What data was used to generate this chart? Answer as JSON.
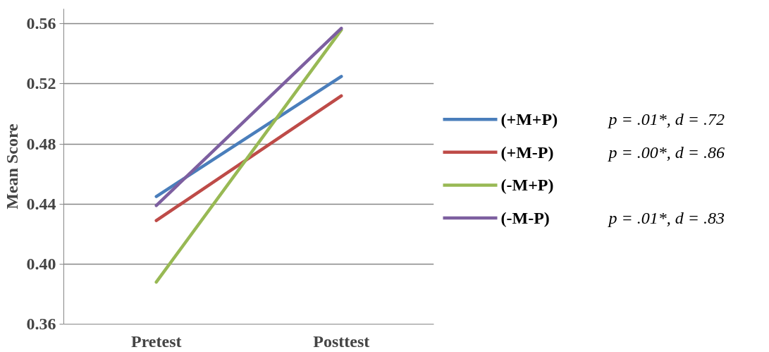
{
  "chart_data": {
    "type": "line",
    "ylabel": "Mean Score",
    "categories": [
      "Pretest",
      "Posttest"
    ],
    "series": [
      {
        "name": "(+M+P)",
        "color": "#4a7ebb",
        "values": [
          0.445,
          0.525
        ]
      },
      {
        "name": "(+M-P)",
        "color": "#be4b48",
        "values": [
          0.429,
          0.512
        ]
      },
      {
        "name": "(-M+P)",
        "color": "#98b954",
        "values": [
          0.388,
          0.556
        ]
      },
      {
        "name": "(-M-P)",
        "color": "#7d5fa0",
        "values": [
          0.439,
          0.557
        ]
      }
    ],
    "ylim": [
      0.36,
      0.57
    ],
    "yticks": [
      {
        "value": 0.36,
        "label": "0.36"
      },
      {
        "value": 0.4,
        "label": "0.40"
      },
      {
        "value": 0.44,
        "label": "0.44"
      },
      {
        "value": 0.48,
        "label": "0.48"
      },
      {
        "value": 0.52,
        "label": "0.52"
      },
      {
        "value": 0.56,
        "label": "0.56"
      }
    ],
    "grid": "y",
    "legend": "right",
    "marker": "none",
    "line_style": "solid",
    "annotations": [
      "p = .01*, d = .72",
      "p = .00*, d = .86",
      "p = .01*, d = .83"
    ]
  }
}
